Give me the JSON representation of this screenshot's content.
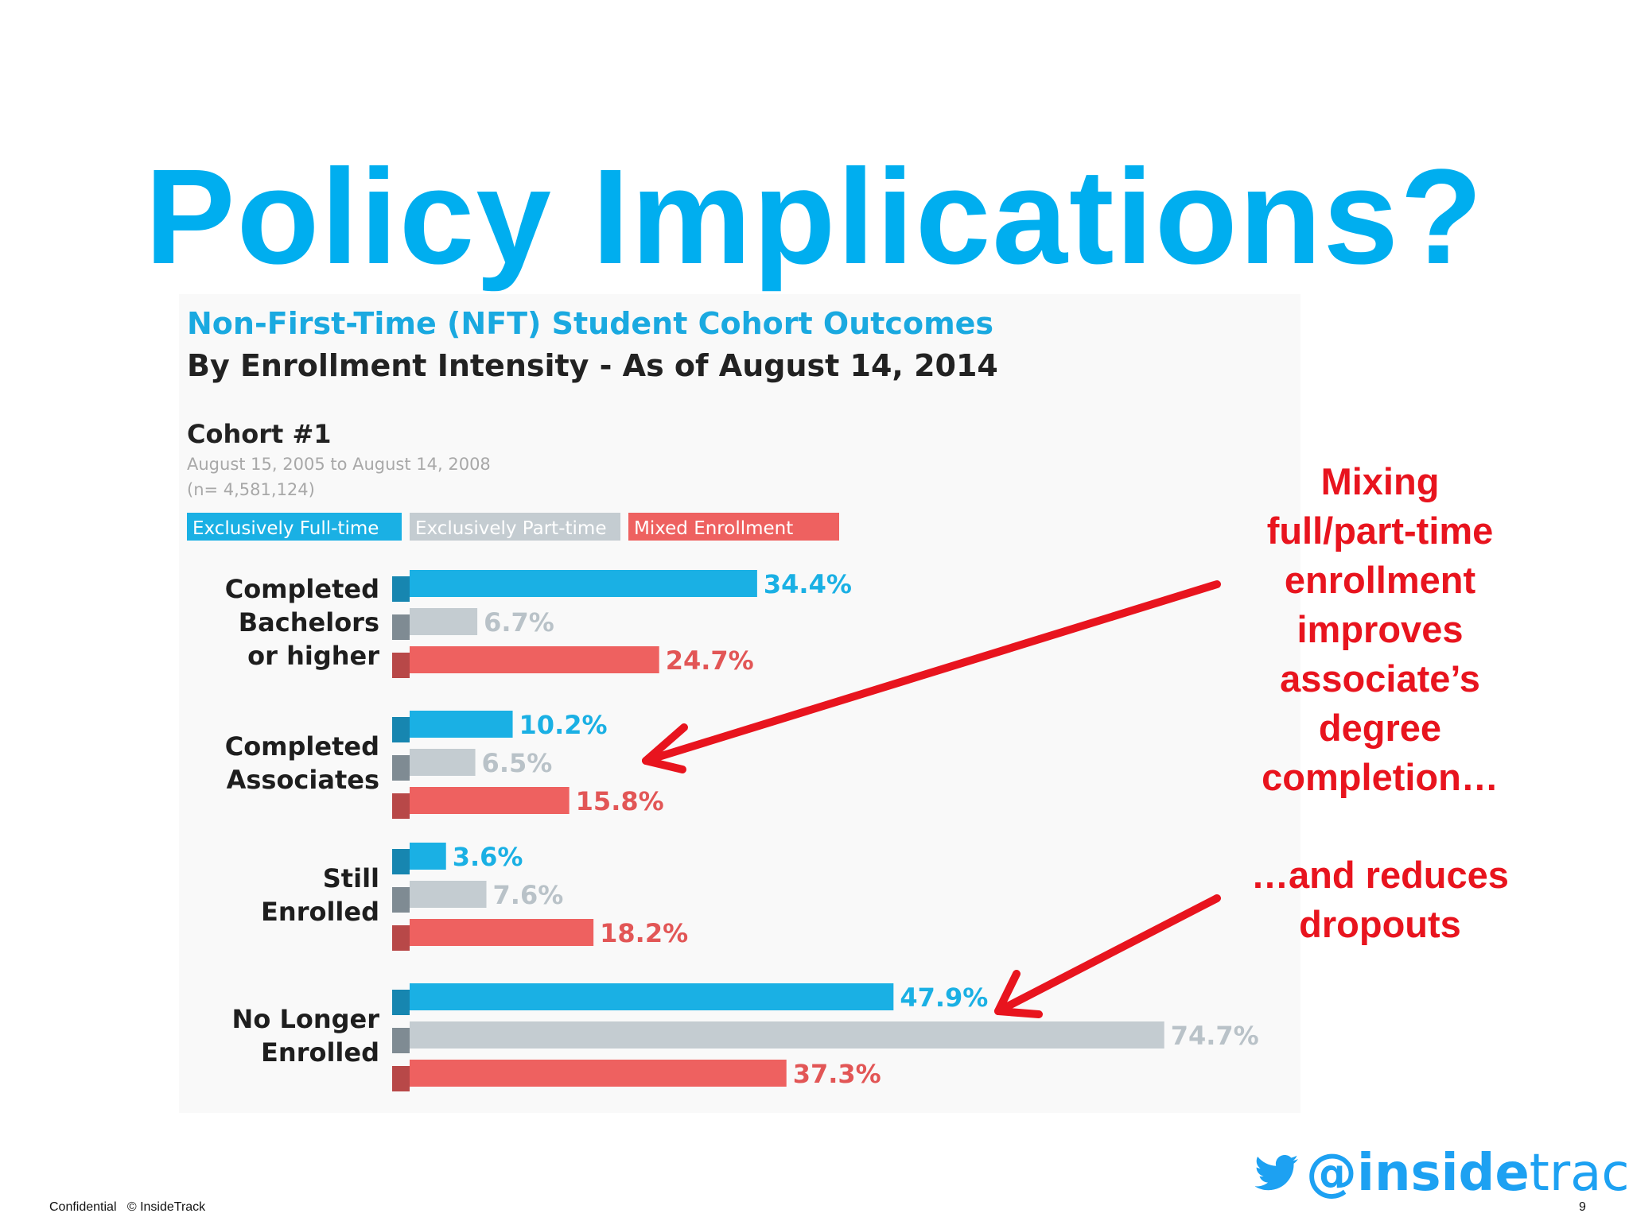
{
  "slide": {
    "title": "Policy Implications?",
    "title_color": "#00aeef"
  },
  "annotations": {
    "text_1_lines": [
      "Mixing",
      "full/part-time",
      "enrollment",
      "improves",
      "associate’s",
      "degree",
      "completion…"
    ],
    "text_2_lines": [
      "…and reduces",
      "dropouts"
    ],
    "color": "#e8141e"
  },
  "footer": {
    "confidential": "Confidential",
    "copyright": "© InsideTrack",
    "page_number": "9"
  },
  "brand": {
    "handle_prefix": "@",
    "handle_main": "inside",
    "handle_suffix": "track",
    "icon": "twitter-bird-icon",
    "color": "#1da1f2"
  },
  "chart_data": {
    "type": "bar",
    "orientation": "horizontal",
    "title": "Non-First-Time (NFT) Student Cohort Outcomes",
    "subtitle": "By Enrollment Intensity - As of August 14, 2014",
    "cohort_label": "Cohort #1",
    "cohort_dates": "August 15, 2005 to August 14, 2008",
    "cohort_n": "(n= 4,581,124)",
    "categories": [
      [
        "Completed",
        "Bachelors",
        "or higher"
      ],
      [
        "Completed",
        "Associates"
      ],
      [
        "Still",
        "Enrolled"
      ],
      [
        "No Longer",
        "Enrolled"
      ]
    ],
    "series": [
      {
        "name": "Exclusively Full-time",
        "color": "#1ab0e4",
        "values": [
          34.4,
          10.2,
          3.6,
          47.9
        ]
      },
      {
        "name": "Exclusively Part-time",
        "color": "#c4ccd1",
        "values": [
          6.7,
          6.5,
          7.6,
          74.7
        ]
      },
      {
        "name": "Mixed Enrollment",
        "color": "#ee6160",
        "values": [
          24.7,
          15.8,
          18.2,
          37.3
        ]
      }
    ],
    "value_suffix": "%",
    "value_label_colors": [
      "#1ab0e4",
      "#b9c2c8",
      "#e25656"
    ],
    "xlim": [
      0,
      100
    ],
    "grid": false,
    "legend_placement": "top-left",
    "title_color": "#1aa9e0",
    "subtitle_color": "#222222",
    "cohort_dates_color": "#a8a8a8"
  }
}
